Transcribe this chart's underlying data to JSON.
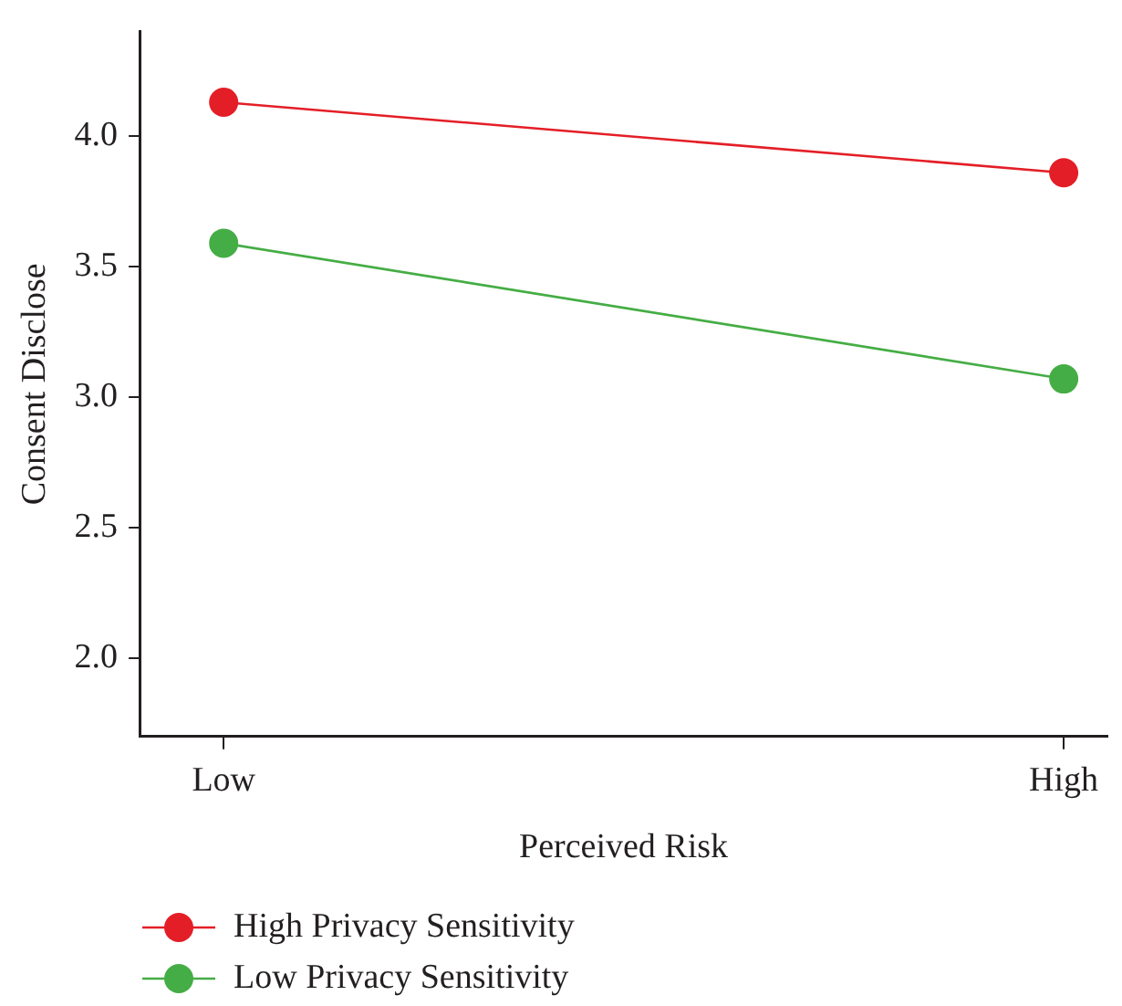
{
  "chart_data": {
    "type": "line",
    "xlabel": "Perceived Risk",
    "ylabel": "Consent Disclose",
    "categories": [
      "Low",
      "High"
    ],
    "series": [
      {
        "name": "High Privacy Sensitivity",
        "color": "#e41e26",
        "values": [
          4.13,
          3.86
        ]
      },
      {
        "name": "Low Privacy Sensitivity",
        "color": "#45ad45",
        "values": [
          3.59,
          3.07
        ]
      }
    ],
    "ylim": [
      1.7,
      4.4
    ],
    "yticks": [
      {
        "value": 2.0,
        "label": "2.0"
      },
      {
        "value": 2.5,
        "label": "2.5"
      },
      {
        "value": 3.0,
        "label": "3.0"
      },
      {
        "value": 3.5,
        "label": "3.5"
      },
      {
        "value": 4.0,
        "label": "4.0"
      }
    ],
    "grid": false,
    "legend": "bottom left",
    "marker": "circle",
    "line_style": "solid"
  }
}
